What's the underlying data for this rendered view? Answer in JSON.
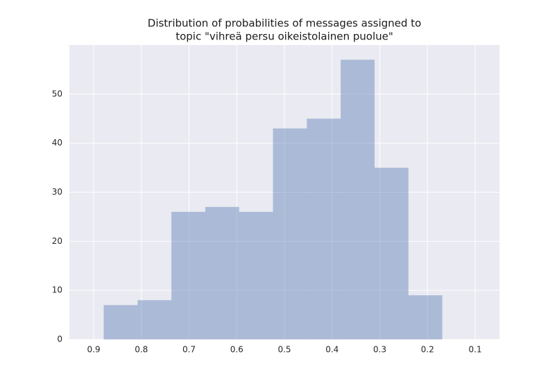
{
  "chart_data": {
    "type": "histogram",
    "title": [
      "Distribution of probabilities of messages assigned to",
      "topic \"vihreä persu oikeistolainen puolue\""
    ],
    "bins": [
      0.879,
      0.808,
      0.737,
      0.666,
      0.595,
      0.524,
      0.453,
      0.382,
      0.311,
      0.24,
      0.169
    ],
    "values": [
      7,
      8,
      26,
      27,
      26,
      43,
      45,
      57,
      35,
      9
    ],
    "color": "#4c72b0",
    "xlim": [
      0.951,
      0.049
    ],
    "xticks": [
      0.9,
      0.8,
      0.7,
      0.6,
      0.5,
      0.4,
      0.3,
      0.2,
      0.1
    ],
    "ylim": [
      0,
      60
    ],
    "yticks": [
      0,
      10,
      20,
      30,
      40,
      50
    ],
    "grid": true
  }
}
